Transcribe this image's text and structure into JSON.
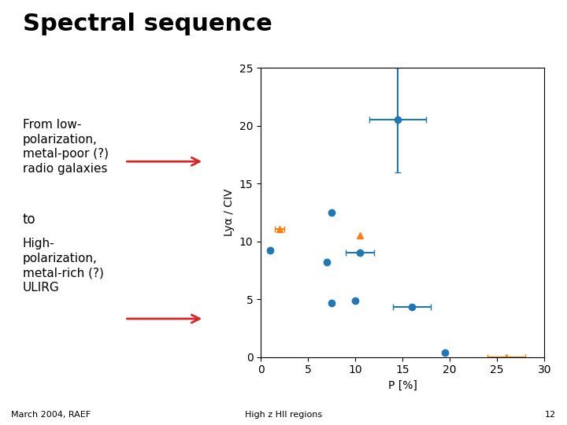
{
  "chart_data": {
    "type": "scatter",
    "title": "Spectral sequence",
    "xlabel": "P [%]",
    "ylabel": "Lyα / CIV",
    "xlim": [
      0,
      30
    ],
    "ylim": [
      0,
      25
    ],
    "xticks": [
      0,
      5,
      10,
      15,
      20,
      25,
      30
    ],
    "yticks": [
      0,
      5,
      10,
      15,
      20,
      25
    ],
    "grid": false,
    "series": [
      {
        "marker": "circle",
        "x": [
          1.0,
          14.5,
          7.5,
          7.0,
          10.5,
          7.5,
          10.0,
          16.0,
          19.5
        ],
        "values": [
          9.2,
          20.5,
          12.5,
          8.2,
          9.0,
          4.7,
          4.9,
          4.3,
          0.4
        ],
        "xerr": [
          0.0,
          3.0,
          0.0,
          0.0,
          1.5,
          0.0,
          0.0,
          2.0,
          0.0
        ],
        "yerr": [
          0.0,
          4.5,
          0.0,
          0.0,
          0.0,
          0.0,
          0.0,
          0.0,
          0.0
        ]
      },
      {
        "marker": "triangle",
        "x": [
          2.0,
          10.5,
          26.0
        ],
        "values": [
          11.1,
          10.5,
          0.0
        ],
        "xerr": [
          0.5,
          0.0,
          2.0
        ],
        "yerr": [
          0.0,
          0.0,
          0.0
        ]
      }
    ],
    "annotations": [
      "From low-\npolarization,\nmetal-poor (?)\nradio galaxies",
      "to",
      "High-\npolarization,\nmetal-rich (?)\nULIRG"
    ],
    "footers": [
      "March 2004, RAEF",
      "High z HII regions",
      "12"
    ]
  }
}
